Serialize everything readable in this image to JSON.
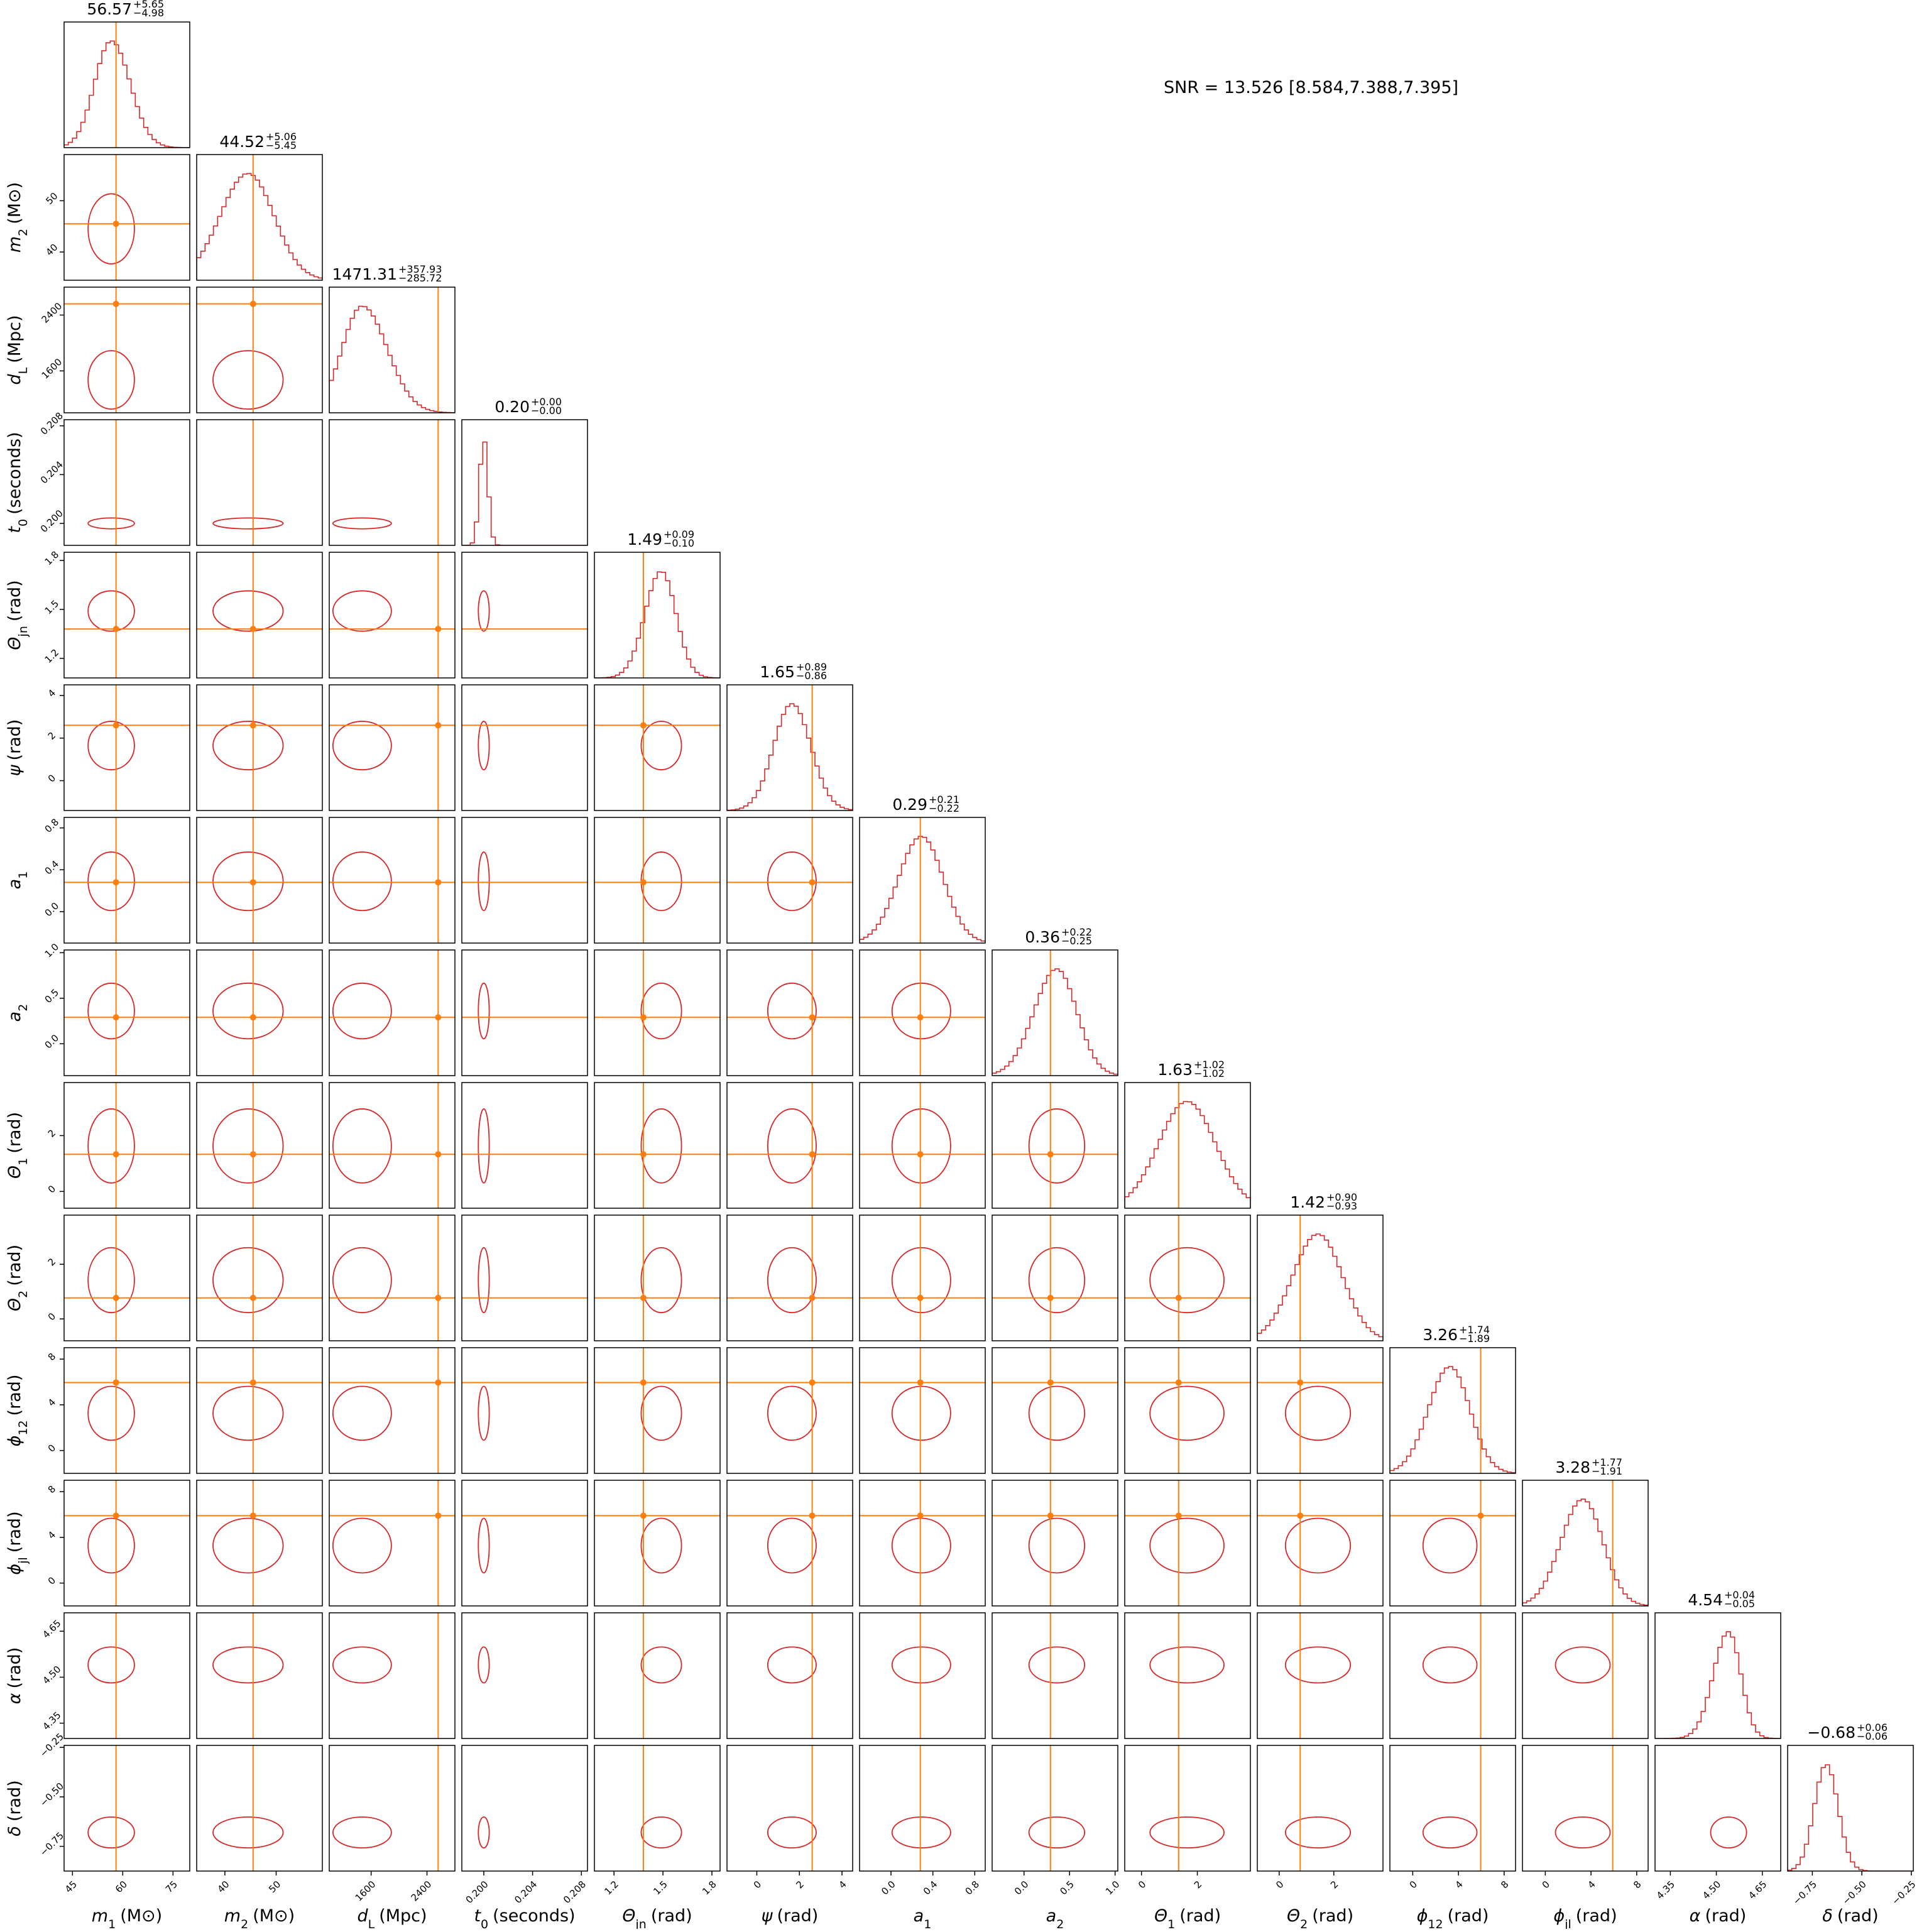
{
  "chart_data": {
    "type": "corner",
    "annotation": "SNR = 13.526 [8.584,7.388,7.395]",
    "posterior_color": "#d62728",
    "truth_color": "#ff7f0e",
    "parameters": [
      {
        "symbol": "m",
        "sub": "1",
        "unit": "(M⊙)",
        "lim": [
          42.5,
          80
        ],
        "ticks": [
          45,
          60,
          75
        ],
        "truth": 58,
        "title": {
          "median": 56.57,
          "plus": {
            "value": 5.65,
            "label": "+5.65"
          },
          "minus": {
            "value": -4.98,
            "label": "−4.98"
          }
        }
      },
      {
        "symbol": "m",
        "sub": "2",
        "unit": "(M⊙)",
        "lim": [
          34.5,
          59
        ],
        "ticks": [
          40,
          50
        ],
        "truth": 45.5,
        "title": {
          "median": 44.52,
          "plus": {
            "value": 5.06,
            "label": "+5.06"
          },
          "minus": {
            "value": -5.45,
            "label": "−5.45"
          }
        }
      },
      {
        "symbol": "d",
        "sub": "L",
        "unit": "(Mpc)",
        "lim": [
          1000,
          2800
        ],
        "ticks": [
          1600,
          2400
        ],
        "truth": 2560,
        "title": {
          "median": 1471.31,
          "plus": {
            "value": 357.93,
            "label": "+357.93"
          },
          "minus": {
            "value": -285.72,
            "label": "−285.72"
          }
        }
      },
      {
        "symbol": "t",
        "sub": "0",
        "unit": "(seconds)",
        "lim": [
          0.1982,
          0.2085
        ],
        "ticks": [
          {
            "value": 0.2,
            "label": "0.200"
          },
          0.204,
          0.208
        ],
        "title": {
          "median": {
            "value": 0.2,
            "label": "0.20"
          },
          "plus": {
            "value": 0,
            "label": "+0.00"
          },
          "minus": {
            "value": 0,
            "label": "−0.00"
          }
        }
      },
      {
        "symbol": "Θ",
        "sub": "jn",
        "unit": "(rad)",
        "lim": [
          1.08,
          1.85
        ],
        "ticks": [
          1.2,
          1.5,
          1.8
        ],
        "truth": 1.38,
        "title": {
          "median": 1.49,
          "plus": {
            "value": 0.09,
            "label": "+0.09"
          },
          "minus": {
            "value": -0.1,
            "label": "−0.10"
          }
        }
      },
      {
        "symbol": "ψ",
        "unit": "(rad)",
        "lim": [
          -1.4,
          4.5
        ],
        "ticks": [
          0,
          2,
          4
        ],
        "truth": 2.6,
        "title": {
          "median": 1.65,
          "plus": {
            "value": 0.89,
            "label": "+0.89"
          },
          "minus": {
            "value": -0.86,
            "label": "−0.86"
          }
        }
      },
      {
        "symbol": "a",
        "sub": "1",
        "lim": [
          -0.3,
          0.9
        ],
        "ticks": [
          {
            "value": 0,
            "label": "0.0"
          },
          0.4,
          0.8
        ],
        "truth": 0.28,
        "title": {
          "median": 0.29,
          "plus": {
            "value": 0.21,
            "label": "+0.21"
          },
          "minus": {
            "value": -0.22,
            "label": "−0.22"
          }
        }
      },
      {
        "symbol": "a",
        "sub": "2",
        "lim": [
          -0.35,
          1.03
        ],
        "ticks": [
          {
            "value": 0,
            "label": "0.0"
          },
          0.5,
          {
            "value": 1,
            "label": "1.0"
          }
        ],
        "truth": 0.29,
        "title": {
          "median": 0.36,
          "plus": {
            "value": 0.22,
            "label": "+0.22"
          },
          "minus": {
            "value": -0.25,
            "label": "−0.25"
          }
        }
      },
      {
        "symbol": "Θ",
        "sub": "1",
        "unit": "(rad)",
        "lim": [
          -0.6,
          3.9
        ],
        "ticks": [
          0,
          2
        ],
        "truth": 1.33,
        "title": {
          "median": 1.63,
          "plus": {
            "value": 1.02,
            "label": "+1.02"
          },
          "minus": {
            "value": -1.02,
            "label": "−1.02"
          }
        }
      },
      {
        "symbol": "Θ",
        "sub": "2",
        "unit": "(rad)",
        "lim": [
          -0.8,
          3.8
        ],
        "ticks": [
          0,
          2
        ],
        "truth": 0.77,
        "title": {
          "median": 1.42,
          "plus": {
            "value": 0.9,
            "label": "+0.90"
          },
          "minus": {
            "value": -0.93,
            "label": "−0.93"
          }
        }
      },
      {
        "symbol": "ϕ",
        "sub": "12",
        "unit": "(rad)",
        "lim": [
          -2,
          9
        ],
        "ticks": [
          0,
          4,
          8
        ],
        "truth": 5.95,
        "title": {
          "median": 3.26,
          "plus": {
            "value": 1.74,
            "label": "+1.74"
          },
          "minus": {
            "value": -1.89,
            "label": "−1.89"
          }
        }
      },
      {
        "symbol": "ϕ",
        "sub": "jl",
        "unit": "(rad)",
        "lim": [
          -2,
          9
        ],
        "ticks": [
          0,
          4,
          8
        ],
        "truth": 5.9,
        "title": {
          "median": 3.28,
          "plus": {
            "value": 1.77,
            "label": "+1.77"
          },
          "minus": {
            "value": -1.91,
            "label": "−1.91"
          }
        }
      },
      {
        "symbol": "α",
        "unit": "(rad)",
        "lim": [
          4.3,
          4.71
        ],
        "ticks": [
          4.35,
          {
            "value": 4.5,
            "label": "4.50"
          },
          4.65
        ],
        "title": {
          "median": 4.54,
          "plus": {
            "value": 0.04,
            "label": "+0.04"
          },
          "minus": {
            "value": -0.05,
            "label": "−0.05"
          }
        }
      },
      {
        "symbol": "δ",
        "unit": "(rad)",
        "lim": [
          -0.875,
          -0.24
        ],
        "ticks": [
          {
            "value": -0.75,
            "label": "−0.75"
          },
          {
            "value": -0.5,
            "label": "−0.50"
          },
          {
            "value": -0.25,
            "label": "−0.25"
          }
        ],
        "title": {
          "median": {
            "value": -0.68,
            "label": "−0.68"
          },
          "plus": {
            "value": 0.06,
            "label": "+0.06"
          },
          "minus": {
            "value": -0.06,
            "label": "−0.06"
          }
        }
      }
    ]
  }
}
